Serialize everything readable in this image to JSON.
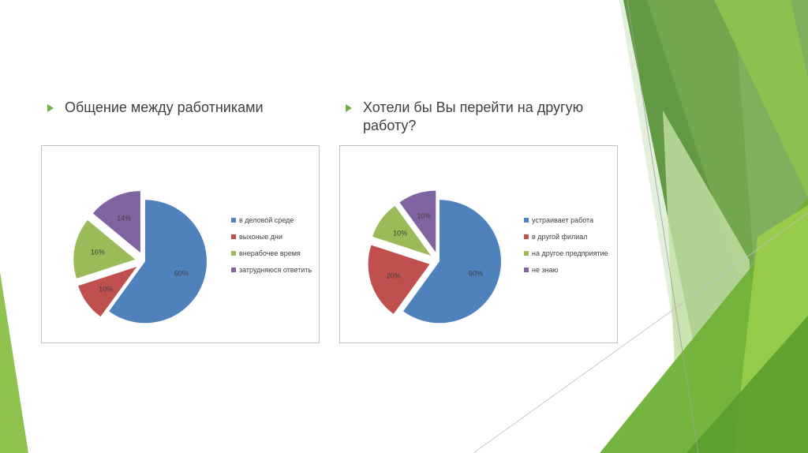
{
  "colors": {
    "accent": "#70ad47",
    "series": [
      "#4f81bd",
      "#c0504d",
      "#9bbb59",
      "#8064a2"
    ]
  },
  "slide": {
    "left_heading": "Общение между работниками",
    "right_heading_line1": "Хотели бы Вы перейти на другую",
    "right_heading_line2": "работу?"
  },
  "chart_data": [
    {
      "type": "pie",
      "title": "Общение между работниками",
      "categories": [
        "в деловой среде",
        "выхоные дни",
        "внерабочее время",
        "затрудняюся ответить"
      ],
      "values": [
        60,
        10,
        16,
        14
      ],
      "data_labels": [
        "60%",
        "10%",
        "16%",
        "14%"
      ],
      "legend": "right",
      "exploded": true
    },
    {
      "type": "pie",
      "title": "Хотели бы Вы перейти на другую работу?",
      "categories": [
        "устраивает работа",
        "в другой филиал",
        "на другое предприятие",
        "не знаю"
      ],
      "values": [
        60,
        20,
        10,
        10
      ],
      "data_labels": [
        "60%",
        "20%",
        "10%",
        "10%"
      ],
      "legend": "right",
      "exploded": true
    }
  ]
}
